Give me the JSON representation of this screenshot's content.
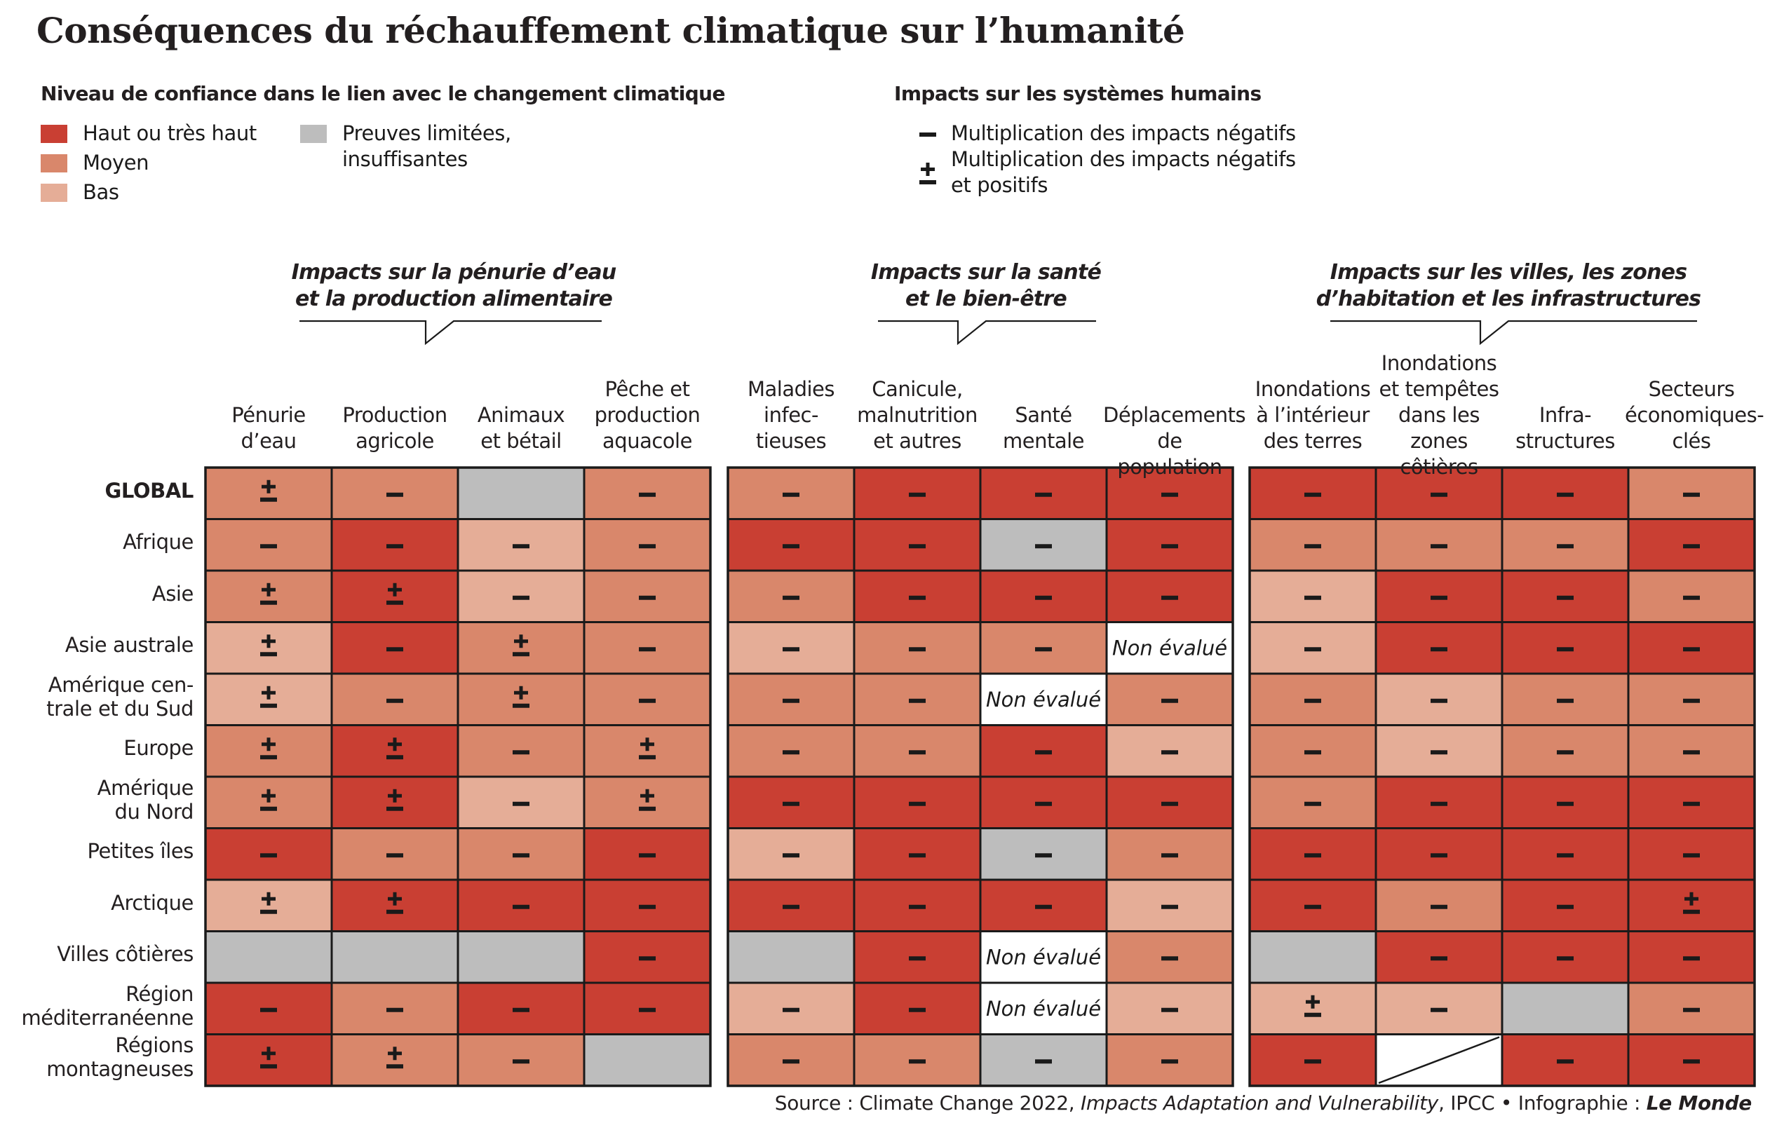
{
  "title": "Conséquences du réchauffement climatique sur l’humanité",
  "legend": {
    "confidence_title": "Niveau de confiance dans le lien avec le changement climatique",
    "items": [
      {
        "key": "H",
        "label": "Haut ou très haut",
        "color": "#c93f33"
      },
      {
        "key": "M",
        "label": "Moyen",
        "color": "#d9876b"
      },
      {
        "key": "L",
        "label": "Bas",
        "color": "#e5ad97"
      },
      {
        "key": "G",
        "label": "Preuves limitées,\ninsuffisantes",
        "color": "#bdbdbd"
      }
    ],
    "impacts_title": "Impacts sur les systèmes humains",
    "signs": [
      {
        "key": "-",
        "label": "Multiplication des impacts négatifs"
      },
      {
        "key": "+",
        "label": "Multiplication des impacts négatifs\net positifs"
      }
    ]
  },
  "chart_data": {
    "type": "table",
    "groups": [
      {
        "title": "Impacts sur la pénurie d’eau\net la production alimentaire",
        "columns": [
          "Pénurie\nd’eau",
          "Production\nagricole",
          "Animaux\net bétail",
          "Pêche et\nproduction\naquacole"
        ]
      },
      {
        "title": "Impacts sur la santé\net le bien-être",
        "columns": [
          "Maladies\ninfec-\ntieuses",
          "Canicule,\nmalnutrition\net autres",
          "Santé\nmentale",
          "Déplacements\nde population"
        ]
      },
      {
        "title": "Impacts sur les villes, les zones\nd’habitation et les infrastructures",
        "columns": [
          "Inondations\nà l’intérieur\ndes terres",
          "Inondations\net tempêtes\ndans les zones\ncôtières",
          "Infra-\nstructures",
          "Secteurs\néconomiques-\nclés"
        ]
      }
    ],
    "not_evaluated_label": "Non évalué",
    "rows": [
      {
        "label": "GLOBAL",
        "bold": true,
        "cells": [
          "M+",
          "M-",
          "G",
          "M-",
          "M-",
          "H-",
          "H-",
          "H-",
          "H-",
          "H-",
          "H-",
          "M-"
        ]
      },
      {
        "label": "Afrique",
        "cells": [
          "M-",
          "H-",
          "L-",
          "M-",
          "H-",
          "H-",
          "G-",
          "H-",
          "M-",
          "M-",
          "M-",
          "H-"
        ]
      },
      {
        "label": "Asie",
        "cells": [
          "M+",
          "H+",
          "L-",
          "M-",
          "M-",
          "H-",
          "H-",
          "H-",
          "L-",
          "H-",
          "H-",
          "M-"
        ]
      },
      {
        "label": "Asie australe",
        "cells": [
          "L+",
          "H-",
          "M+",
          "M-",
          "L-",
          "M-",
          "M-",
          "N",
          "L-",
          "H-",
          "H-",
          "H-"
        ]
      },
      {
        "label": "Amérique cen-\ntrale et du Sud",
        "cells": [
          "L+",
          "M-",
          "M+",
          "M-",
          "M-",
          "M-",
          "N",
          "M-",
          "M-",
          "L-",
          "M-",
          "M-"
        ]
      },
      {
        "label": "Europe",
        "cells": [
          "M+",
          "H+",
          "M-",
          "M+",
          "M-",
          "M-",
          "H-",
          "L-",
          "M-",
          "L-",
          "M-",
          "M-"
        ]
      },
      {
        "label": "Amérique\ndu Nord",
        "cells": [
          "M+",
          "H+",
          "L-",
          "M+",
          "H-",
          "H-",
          "H-",
          "H-",
          "M-",
          "H-",
          "H-",
          "H-"
        ]
      },
      {
        "label": "Petites îles",
        "cells": [
          "H-",
          "M-",
          "M-",
          "H-",
          "L-",
          "H-",
          "G-",
          "M-",
          "H-",
          "H-",
          "H-",
          "H-"
        ]
      },
      {
        "label": "Arctique",
        "cells": [
          "L+",
          "H+",
          "H-",
          "H-",
          "H-",
          "H-",
          "H-",
          "L-",
          "H-",
          "M-",
          "H-",
          "H+"
        ]
      },
      {
        "label": "Villes côtières",
        "cells": [
          "G",
          "G",
          "G",
          "H-",
          "G",
          "H-",
          "N",
          "M-",
          "G",
          "H-",
          "H-",
          "H-"
        ]
      },
      {
        "label": "Région\nméditerranéenne",
        "cells": [
          "H-",
          "M-",
          "H-",
          "H-",
          "L-",
          "H-",
          "N",
          "L-",
          "L+",
          "L-",
          "G",
          "M-"
        ]
      },
      {
        "label": "Régions\nmontagneuses",
        "cells": [
          "H+",
          "M+",
          "M-",
          "G",
          "M-",
          "M-",
          "G-",
          "M-",
          "H-",
          "D",
          "H-",
          "H-"
        ]
      }
    ]
  },
  "source": {
    "prefix": "Source : Climate Change 2022, ",
    "report": "Impacts Adaptation and Vulnerability",
    "middle": ", IPCC  •  Infographie : ",
    "publisher": "Le Monde"
  }
}
